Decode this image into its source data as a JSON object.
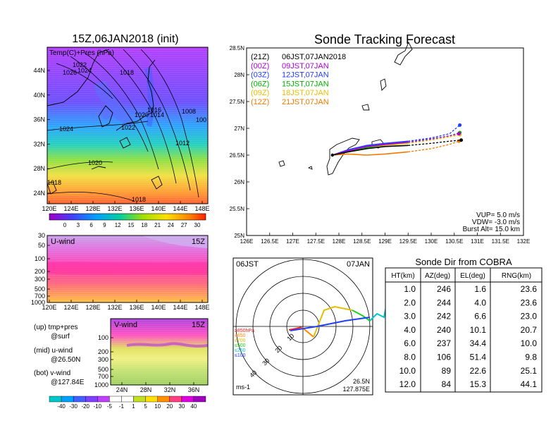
{
  "left_top": {
    "title": "15Z,06JAN2018 (init)",
    "label": "Temp(C)+Pres (hPa)",
    "x_ticks": [
      "120E",
      "124E",
      "128E",
      "132E",
      "136E",
      "140E",
      "144E",
      "148E"
    ],
    "y_ticks": [
      "24N",
      "28N",
      "32N",
      "36N",
      "40N",
      "44N"
    ],
    "contour_labels": [
      "1022",
      "1026",
      "1024",
      "1018",
      "1016",
      "1020",
      "1014",
      "1008",
      "100",
      "1024",
      "1022",
      "1012",
      "1020",
      "1018",
      "1018"
    ],
    "colorbar_ticks": [
      "0",
      "3",
      "6",
      "9",
      "12",
      "15",
      "18",
      "21",
      "24",
      "27",
      "30"
    ]
  },
  "left_mid": {
    "label": "U-wind",
    "time": "15Z",
    "x_ticks": [
      "120E",
      "124E",
      "128E",
      "132E",
      "136E",
      "140E",
      "144E",
      "148E"
    ],
    "y_ticks": [
      "30",
      "50",
      "100",
      "200",
      "300",
      "500",
      "700",
      "1000"
    ]
  },
  "left_bot": {
    "label": "V-wind",
    "time": "15Z",
    "x_ticks": [
      "24N",
      "28N",
      "32N",
      "36N"
    ],
    "y_ticks": [
      "100",
      "200",
      "300",
      "500",
      "700",
      "1000"
    ],
    "colorbar_ticks": [
      "-40",
      "-30",
      "-20",
      "-10",
      "-5",
      "-1",
      "1",
      "5",
      "10",
      "20",
      "30",
      "40"
    ]
  },
  "legend_notes": [
    "(up) tmp+pres",
    "@surf",
    "(mid) u-wind",
    "@26.50N",
    "(bot) v-wind",
    "@127.84E"
  ],
  "tracking": {
    "title": "Sonde Tracking Forecast",
    "legend": [
      {
        "code": "(21Z)",
        "time": "06JST,07JAN2018",
        "color": "#000000"
      },
      {
        "code": "(00Z)",
        "time": "09JST,07JAN",
        "color": "#b000d8"
      },
      {
        "code": "(03Z)",
        "time": "12JST,07JAN",
        "color": "#1f3cff"
      },
      {
        "code": "(06Z)",
        "time": "15JST,07JAN",
        "color": "#00b000"
      },
      {
        "code": "(09Z)",
        "time": "18JST,07JAN",
        "color": "#e8c000"
      },
      {
        "code": "(12Z)",
        "time": "21JST,07JAN",
        "color": "#f07a00"
      }
    ],
    "x_ticks": [
      "126E",
      "126.5E",
      "127E",
      "127.5E",
      "128E",
      "128.5E",
      "129E",
      "129.5E",
      "130E",
      "130.5E",
      "131E",
      "131.5E",
      "132E"
    ],
    "y_ticks": [
      "25N",
      "25.5N",
      "26N",
      "26.5N",
      "27N",
      "27.5N",
      "28N",
      "28.5N"
    ],
    "params": [
      "VUP= 5.0 m/s",
      "VDW= -3.0 m/s",
      "Burst Alt= 15.0 km"
    ]
  },
  "chart_data": {
    "type": "line",
    "title": "Sonde Tracking Forecast",
    "xlim": [
      126,
      132
    ],
    "ylim": [
      25,
      28.5
    ],
    "series": [
      {
        "name": "(21Z) 06JST,07JAN2018",
        "x": [
          127.86,
          128.2,
          128.6,
          129.0,
          129.5,
          130.0,
          130.4,
          130.65
        ],
        "y": [
          26.5,
          26.56,
          26.62,
          26.66,
          26.68,
          26.72,
          26.76,
          26.78
        ]
      },
      {
        "name": "(00Z) 09JST,07JAN",
        "x": [
          127.86,
          128.2,
          128.6,
          129.0,
          129.5,
          130.0,
          130.4,
          130.6
        ],
        "y": [
          26.5,
          26.58,
          26.66,
          26.7,
          26.74,
          26.8,
          26.86,
          26.9
        ]
      },
      {
        "name": "(03Z) 12JST,07JAN",
        "x": [
          127.86,
          128.2,
          128.6,
          129.0,
          129.5,
          130.0,
          130.4,
          130.62
        ],
        "y": [
          26.5,
          26.6,
          26.68,
          26.72,
          26.76,
          26.82,
          26.9,
          27.06
        ]
      },
      {
        "name": "(06Z) 15JST,07JAN",
        "x": [
          127.86,
          128.2,
          128.6,
          129.0,
          129.5,
          130.0,
          130.4,
          130.62
        ],
        "y": [
          26.5,
          26.58,
          26.64,
          26.7,
          26.74,
          26.8,
          26.86,
          26.92
        ]
      },
      {
        "name": "(09Z) 18JST,07JAN",
        "x": [
          127.86,
          128.2,
          128.6,
          129.0,
          129.5,
          130.0,
          130.4,
          130.62
        ],
        "y": [
          26.5,
          26.56,
          26.62,
          26.68,
          26.72,
          26.78,
          26.84,
          26.88
        ]
      },
      {
        "name": "(12Z) 21JST,07JAN",
        "x": [
          127.86,
          128.2,
          128.6,
          129.0,
          129.5,
          130.0,
          130.4,
          130.6
        ],
        "y": [
          26.5,
          26.52,
          26.5,
          26.52,
          26.56,
          26.62,
          26.7,
          26.76
        ]
      }
    ]
  },
  "polar": {
    "left_label": "06JST",
    "right_label": "07JAN",
    "ring_labels": [
      "10",
      "20",
      "30",
      "40"
    ],
    "bottom_left": "ms-1",
    "pos_lat": "26.5N",
    "pos_lon": "127.875E",
    "level_legend": [
      {
        "label": "≥850hPa",
        "color": "#ff2020"
      },
      {
        "label": "≤850",
        "color": "#ff8800"
      },
      {
        "label": "≤700",
        "color": "#e0c000"
      },
      {
        "label": "≤500",
        "color": "#20d020"
      },
      {
        "label": "≤250",
        "color": "#00c8c8"
      },
      {
        "label": "≤100",
        "color": "#2040ff"
      }
    ]
  },
  "table": {
    "title": "Sonde Dir from COBRA",
    "headers": [
      "HT(km)",
      "AZ(deg)",
      "EL(deg)",
      "RNG(km)"
    ],
    "rows": [
      [
        "1.0",
        "246",
        "1.6",
        "23.6"
      ],
      [
        "2.0",
        "244",
        "4.0",
        "23.6"
      ],
      [
        "3.0",
        "242",
        "6.6",
        "23.0"
      ],
      [
        "4.0",
        "240",
        "10.1",
        "20.7"
      ],
      [
        "6.0",
        "237",
        "34.4",
        "10.0"
      ],
      [
        "8.0",
        "106",
        "51.4",
        "9.8"
      ],
      [
        "10.0",
        "89",
        "22.6",
        "25.1"
      ],
      [
        "12.0",
        "84",
        "15.3",
        "44.1"
      ]
    ]
  }
}
